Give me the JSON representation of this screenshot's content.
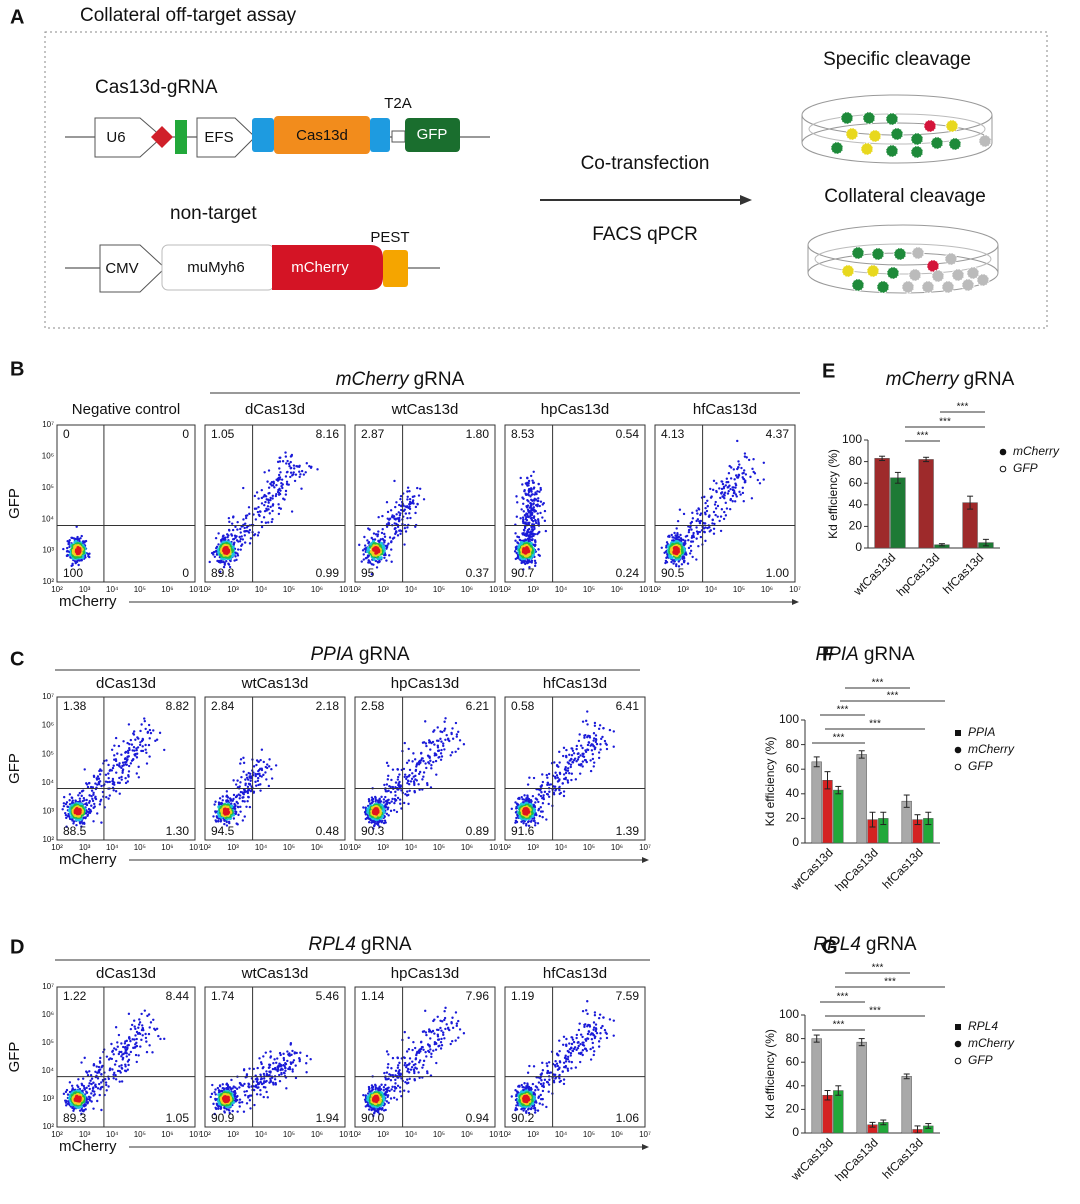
{
  "panel_a": {
    "letter": "A",
    "title": "Collateral off-target assay",
    "construct1": {
      "label": "Cas13d-gRNA",
      "parts": [
        "U6",
        "EFS",
        "Cas13d",
        "GFP"
      ],
      "t2a": "T2A"
    },
    "construct2": {
      "label": "non-target",
      "parts": [
        "CMV",
        "muMyh6",
        "mCherry"
      ],
      "pest": "PEST"
    },
    "arrow_top": "Co-transfection",
    "arrow_bottom": "FACS qPCR",
    "dish1": "Specific cleavage",
    "dish2": "Collateral cleavage"
  },
  "facs_axes": {
    "y_label": "GFP",
    "x_label": "mCherry",
    "ticks": [
      "10²",
      "10³",
      "10⁴",
      "10⁵",
      "10⁶",
      "10⁷"
    ]
  },
  "facs_panels": [
    {
      "letter": "B",
      "header": [
        "mCherry",
        "gRNA"
      ],
      "plots": [
        {
          "title": "Negative control",
          "quadrants": [
            "0",
            "0",
            "100",
            "0"
          ]
        },
        {
          "title": "dCas13d",
          "quadrants": [
            "1.05",
            "8.16",
            "89.8",
            "0.99"
          ]
        },
        {
          "title": "wtCas13d",
          "quadrants": [
            "2.87",
            "1.80",
            "95",
            "0.37"
          ]
        },
        {
          "title": "hpCas13d",
          "quadrants": [
            "8.53",
            "0.54",
            "90.7",
            "0.24"
          ]
        },
        {
          "title": "hfCas13d",
          "quadrants": [
            "4.13",
            "4.37",
            "90.5",
            "1.00"
          ]
        }
      ]
    },
    {
      "letter": "C",
      "header": [
        "PPIA",
        "gRNA"
      ],
      "plots": [
        {
          "title": "dCas13d",
          "quadrants": [
            "1.38",
            "8.82",
            "88.5",
            "1.30"
          ]
        },
        {
          "title": "wtCas13d",
          "quadrants": [
            "2.84",
            "2.18",
            "94.5",
            "0.48"
          ]
        },
        {
          "title": "hpCas13d",
          "quadrants": [
            "2.58",
            "6.21",
            "90.3",
            "0.89"
          ]
        },
        {
          "title": "hfCas13d",
          "quadrants": [
            "0.58",
            "6.41",
            "91.6",
            "1.39"
          ]
        }
      ]
    },
    {
      "letter": "D",
      "header": [
        "RPL4",
        "gRNA"
      ],
      "plots": [
        {
          "title": "dCas13d",
          "quadrants": [
            "1.22",
            "8.44",
            "89.3",
            "1.05"
          ]
        },
        {
          "title": "wtCas13d",
          "quadrants": [
            "1.74",
            "5.46",
            "90.9",
            "1.94"
          ]
        },
        {
          "title": "hpCas13d",
          "quadrants": [
            "1.14",
            "7.96",
            "90.0",
            "0.94"
          ]
        },
        {
          "title": "hfCas13d",
          "quadrants": [
            "1.19",
            "7.59",
            "90.2",
            "1.06"
          ]
        }
      ]
    }
  ],
  "chart_data": [
    {
      "type": "bar",
      "letter": "E",
      "title": [
        "mCherry",
        "gRNA"
      ],
      "ylabel": "Kd efficiency (%)",
      "categories": [
        "wtCas13d",
        "hpCas13d",
        "hfCas13d"
      ],
      "series": [
        {
          "name": "mCherry",
          "color": "#9e2a2b",
          "marker": "circle",
          "values": [
            83,
            82,
            42
          ],
          "errors": [
            2,
            2,
            6
          ]
        },
        {
          "name": "GFP",
          "color": "#1e7a35",
          "marker": "open-circle",
          "values": [
            65,
            3,
            5
          ],
          "errors": [
            5,
            1,
            3
          ]
        }
      ],
      "ylim": [
        0,
        100
      ],
      "yticks": [
        0,
        20,
        40,
        60,
        80,
        100
      ],
      "significance": [
        "***",
        "***",
        "***"
      ]
    },
    {
      "type": "bar",
      "letter": "F",
      "title": [
        "PPIA",
        "gRNA"
      ],
      "ylabel": "Kd efficiency (%)",
      "categories": [
        "wtCas13d",
        "hpCas13d",
        "hfCas13d"
      ],
      "series": [
        {
          "name": "PPIA",
          "color": "#a9a9a9",
          "marker": "square",
          "values": [
            66,
            72,
            34
          ],
          "errors": [
            4,
            3,
            5
          ]
        },
        {
          "name": "mCherry",
          "color": "#d42222",
          "marker": "circle",
          "values": [
            51,
            19,
            19
          ],
          "errors": [
            7,
            6,
            4
          ]
        },
        {
          "name": "GFP",
          "color": "#22a83a",
          "marker": "open-circle",
          "values": [
            43,
            20,
            20
          ],
          "errors": [
            3,
            5,
            5
          ]
        }
      ],
      "ylim": [
        0,
        100
      ],
      "yticks": [
        0,
        20,
        40,
        60,
        80,
        100
      ],
      "significance": [
        "***",
        "***",
        "***",
        "***",
        "***"
      ]
    },
    {
      "type": "bar",
      "letter": "G",
      "title": [
        "RPL4",
        "gRNA"
      ],
      "ylabel": "Kd efficiency (%)",
      "categories": [
        "wtCas13d",
        "hpCas13d",
        "hfCas13d"
      ],
      "series": [
        {
          "name": "RPL4",
          "color": "#a9a9a9",
          "marker": "square",
          "values": [
            80,
            77,
            48
          ],
          "errors": [
            3,
            3,
            2
          ]
        },
        {
          "name": "mCherry",
          "color": "#d42222",
          "marker": "circle",
          "values": [
            32,
            7,
            3
          ],
          "errors": [
            4,
            2,
            3
          ]
        },
        {
          "name": "GFP",
          "color": "#22a83a",
          "marker": "open-circle",
          "values": [
            36,
            9,
            6
          ],
          "errors": [
            4,
            2,
            2
          ]
        }
      ],
      "ylim": [
        0,
        100
      ],
      "yticks": [
        0,
        20,
        40,
        60,
        80,
        100
      ],
      "significance": [
        "***",
        "***",
        "***",
        "***",
        "***"
      ]
    }
  ]
}
